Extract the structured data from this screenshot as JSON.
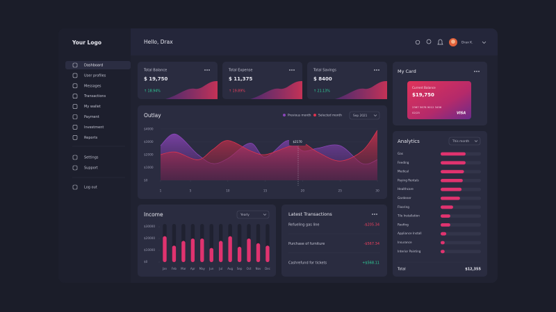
{
  "sidebar": {
    "logo": "Your Logo",
    "menu": [
      "Dashboard",
      "User profiles",
      "Messages",
      "Transactions",
      "My wallet",
      "Payment",
      "Investment",
      "Reports"
    ],
    "secondary": [
      "Settings",
      "Support"
    ],
    "logout": "Log out"
  },
  "header": {
    "greeting": "Hello, Drax",
    "user": "Drax K."
  },
  "stats": [
    {
      "title": "Total Balance",
      "value": "$ 19,750",
      "change": "↑ 18.94%",
      "change_color": "#2fd39a"
    },
    {
      "title": "Total Expense",
      "value": "$ 11,375",
      "change": "↑ 19.89%",
      "change_color": "#f0415f"
    },
    {
      "title": "Total Savings",
      "value": "$ 8400",
      "change": "↑ 21.13%",
      "change_color": "#2fd39a"
    }
  ],
  "outlay": {
    "type": "area",
    "title": "Outlay",
    "period": "Sep 2021",
    "tooltip": "$2170",
    "x": [
      1,
      3,
      6,
      8,
      10,
      13,
      15,
      18,
      20,
      22,
      25,
      28,
      30
    ],
    "xlim": [
      1,
      30
    ],
    "xticks": [
      1,
      5,
      10,
      15,
      20,
      25,
      30
    ],
    "ylim": [
      0,
      4000
    ],
    "yticks": [
      {
        "value": 0,
        "label": "$0"
      },
      {
        "value": 1000,
        "label": "$1000"
      },
      {
        "value": 2000,
        "label": "$2000"
      },
      {
        "value": 3000,
        "label": "$3000"
      },
      {
        "value": 4000,
        "label": "$4000"
      }
    ],
    "series": [
      {
        "name": "Previous month",
        "color": "#8a45b8",
        "values": [
          2700,
          3600,
          2000,
          1300,
          1700,
          2900,
          1800,
          3100,
          2300,
          2500,
          2700,
          1300,
          1600
        ]
      },
      {
        "name": "Selected month",
        "color": "#e0334f",
        "values": [
          2000,
          2200,
          1600,
          2400,
          3100,
          2300,
          2000,
          2600,
          2900,
          2200,
          1500,
          2300,
          3900
        ]
      }
    ]
  },
  "income": {
    "type": "bar",
    "title": "Income",
    "period": "Yearly",
    "categories": [
      "Jan",
      "Feb",
      "Mar",
      "Apr",
      "May",
      "Jun",
      "Jul",
      "Aug",
      "Sep",
      "Oct",
      "Nov",
      "Dec"
    ],
    "values": [
      22000,
      14000,
      18000,
      20000,
      20000,
      12000,
      18000,
      22000,
      13000,
      20000,
      16000,
      14000
    ],
    "color": "#e0336f",
    "ylim": [
      0,
      30000
    ],
    "yticks": [
      {
        "value": 0,
        "label": "$0"
      },
      {
        "value": 10000,
        "label": "$10000"
      },
      {
        "value": 20000,
        "label": "$20000"
      },
      {
        "value": 30000,
        "label": "$30000"
      }
    ]
  },
  "transactions": {
    "title": "Latest Transactions",
    "items": [
      {
        "name": "Refueling gas line",
        "amount": "-$205.34",
        "color": "#f0415f"
      },
      {
        "name": "Purchase of furniture",
        "amount": "-$567.34",
        "color": "#f0415f"
      },
      {
        "name": "Cashrefund for tickets",
        "amount": "+$568.11",
        "color": "#2fd39a"
      }
    ]
  },
  "card": {
    "title": "My Card",
    "label": "Current Balance",
    "balance": "$19,750",
    "number": "2367 5678 9012 3456",
    "expiry": "02/25",
    "brand": "VISA"
  },
  "analytics": {
    "type": "bar",
    "title": "Analytics",
    "period": "This month",
    "categories": [
      "Gas",
      "Feeding",
      "Medical",
      "Paying Rentals",
      "Healthcare",
      "Gardener",
      "Flooring",
      "Tile Installation",
      "Roofing",
      "Appliance Install",
      "Insurance",
      "Interior Painting"
    ],
    "values": [
      62,
      62,
      58,
      55,
      52,
      48,
      31,
      24,
      24,
      14,
      10,
      10
    ],
    "xlim": [
      0,
      100
    ],
    "color": "#e0336f",
    "total_label": "Total",
    "total": "$12,355"
  }
}
